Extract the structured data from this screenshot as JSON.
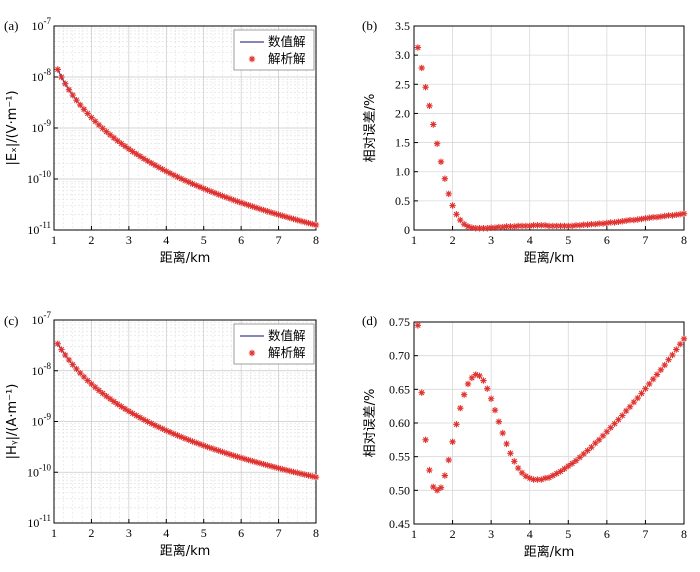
{
  "chart_data": [
    {
      "panel": "(a)",
      "type": "line",
      "log_y": true,
      "ylim": [
        1e-11,
        1e-07
      ],
      "xlim": [
        1,
        8
      ],
      "xticks": [
        1,
        2,
        3,
        4,
        5,
        6,
        7,
        8
      ],
      "ytick_labels": [
        {
          "base": "10",
          "exp": "-11"
        },
        {
          "base": "10",
          "exp": "-10"
        },
        {
          "base": "10",
          "exp": "-9"
        },
        {
          "base": "10",
          "exp": "-8"
        },
        {
          "base": "10",
          "exp": "-7"
        }
      ],
      "xlabel": "距离/km",
      "ylabel": "|Eₓ|/(V·m⁻¹)",
      "grid": true,
      "legend": "top-right",
      "legend_entries": [
        "数值解",
        "解析解"
      ],
      "curve": {
        "x0": 1.1,
        "y0": 1.3e-08,
        "alpha": 3.5,
        "A": 1.1e-09,
        "tau": 0.1
      },
      "colors": {
        "line": "#3a3f8f",
        "marker": "#e0322f"
      }
    },
    {
      "panel": "(b)",
      "type": "scatter",
      "log_y": false,
      "ylim": [
        0,
        3.5
      ],
      "xlim": [
        1,
        8
      ],
      "xticks": [
        1,
        2,
        3,
        4,
        5,
        6,
        7,
        8
      ],
      "yticks": [
        "0",
        "0.5",
        "1.0",
        "1.5",
        "2.0",
        "2.5",
        "3.0",
        "3.5"
      ],
      "xlabel": "距离/km",
      "ylabel": "相对误差/%",
      "grid": true,
      "points": [
        [
          1.1,
          3.13
        ],
        [
          1.2,
          2.78
        ],
        [
          1.3,
          2.45
        ],
        [
          1.4,
          2.13
        ],
        [
          1.5,
          1.81
        ],
        [
          1.6,
          1.48
        ],
        [
          1.7,
          1.17
        ],
        [
          1.8,
          0.88
        ],
        [
          1.9,
          0.62
        ],
        [
          2.0,
          0.42
        ],
        [
          2.1,
          0.27
        ],
        [
          2.2,
          0.17
        ],
        [
          2.3,
          0.1
        ],
        [
          2.4,
          0.06
        ],
        [
          2.5,
          0.04
        ],
        [
          2.6,
          0.03
        ],
        [
          2.7,
          0.03
        ],
        [
          2.8,
          0.03
        ],
        [
          2.9,
          0.03
        ],
        [
          3.0,
          0.04
        ],
        [
          3.1,
          0.04
        ],
        [
          3.2,
          0.05
        ],
        [
          3.3,
          0.05
        ],
        [
          3.4,
          0.06
        ],
        [
          3.5,
          0.06
        ],
        [
          3.6,
          0.06
        ],
        [
          3.7,
          0.07
        ],
        [
          3.8,
          0.07
        ],
        [
          3.9,
          0.07
        ],
        [
          4.0,
          0.07
        ],
        [
          4.1,
          0.08
        ],
        [
          4.2,
          0.08
        ],
        [
          4.3,
          0.08
        ],
        [
          4.4,
          0.08
        ],
        [
          4.5,
          0.07
        ],
        [
          4.6,
          0.07
        ],
        [
          4.7,
          0.07
        ],
        [
          4.8,
          0.07
        ],
        [
          4.9,
          0.07
        ],
        [
          5.0,
          0.07
        ],
        [
          5.1,
          0.07
        ],
        [
          5.2,
          0.08
        ],
        [
          5.3,
          0.08
        ],
        [
          5.4,
          0.09
        ],
        [
          5.5,
          0.09
        ],
        [
          5.6,
          0.1
        ],
        [
          5.7,
          0.1
        ],
        [
          5.8,
          0.11
        ],
        [
          5.9,
          0.11
        ],
        [
          6.0,
          0.12
        ],
        [
          6.1,
          0.13
        ],
        [
          6.2,
          0.13
        ],
        [
          6.3,
          0.14
        ],
        [
          6.4,
          0.15
        ],
        [
          6.5,
          0.16
        ],
        [
          6.6,
          0.17
        ],
        [
          6.7,
          0.17
        ],
        [
          6.8,
          0.18
        ],
        [
          6.9,
          0.19
        ],
        [
          7.0,
          0.2
        ],
        [
          7.1,
          0.21
        ],
        [
          7.2,
          0.22
        ],
        [
          7.3,
          0.22
        ],
        [
          7.4,
          0.23
        ],
        [
          7.5,
          0.24
        ],
        [
          7.6,
          0.25
        ],
        [
          7.7,
          0.25
        ],
        [
          7.8,
          0.26
        ],
        [
          7.9,
          0.27
        ],
        [
          8.0,
          0.28
        ]
      ],
      "colors": {
        "marker": "#e0322f"
      }
    },
    {
      "panel": "(c)",
      "type": "line",
      "log_y": true,
      "ylim": [
        1e-11,
        1e-07
      ],
      "xlim": [
        1,
        8
      ],
      "xticks": [
        1,
        2,
        3,
        4,
        5,
        6,
        7,
        8
      ],
      "ytick_labels": [
        {
          "base": "10",
          "exp": "-11"
        },
        {
          "base": "10",
          "exp": "-10"
        },
        {
          "base": "10",
          "exp": "-9"
        },
        {
          "base": "10",
          "exp": "-8"
        },
        {
          "base": "10",
          "exp": "-7"
        }
      ],
      "xlabel": "距离/km",
      "ylabel": "|Hᵧ|/(A·m⁻¹)",
      "grid": true,
      "legend": "top-right",
      "legend_entries": [
        "数值解",
        "解析解"
      ],
      "curve": {
        "x0": 1.1,
        "y0": 3.4e-08,
        "alpha": 3.05,
        "A": 0,
        "tau": 1
      },
      "colors": {
        "line": "#3a3f8f",
        "marker": "#e0322f"
      }
    },
    {
      "panel": "(d)",
      "type": "scatter",
      "log_y": false,
      "ylim": [
        0.45,
        0.75
      ],
      "xlim": [
        1,
        8
      ],
      "xticks": [
        1,
        2,
        3,
        4,
        5,
        6,
        7,
        8
      ],
      "yticks": [
        "0.45",
        "0.50",
        "0.55",
        "0.60",
        "0.65",
        "0.70",
        "0.75"
      ],
      "xlabel": "距离/km",
      "ylabel": "相对误差/%",
      "grid": true,
      "points": [
        [
          1.1,
          0.745
        ],
        [
          1.2,
          0.645
        ],
        [
          1.3,
          0.575
        ],
        [
          1.4,
          0.53
        ],
        [
          1.5,
          0.505
        ],
        [
          1.6,
          0.5
        ],
        [
          1.7,
          0.504
        ],
        [
          1.8,
          0.522
        ],
        [
          1.9,
          0.545
        ],
        [
          2.0,
          0.572
        ],
        [
          2.1,
          0.598
        ],
        [
          2.2,
          0.622
        ],
        [
          2.3,
          0.642
        ],
        [
          2.4,
          0.658
        ],
        [
          2.5,
          0.667
        ],
        [
          2.6,
          0.672
        ],
        [
          2.7,
          0.67
        ],
        [
          2.8,
          0.663
        ],
        [
          2.9,
          0.651
        ],
        [
          3.0,
          0.636
        ],
        [
          3.1,
          0.619
        ],
        [
          3.2,
          0.602
        ],
        [
          3.3,
          0.585
        ],
        [
          3.4,
          0.569
        ],
        [
          3.5,
          0.555
        ],
        [
          3.6,
          0.543
        ],
        [
          3.7,
          0.533
        ],
        [
          3.8,
          0.526
        ],
        [
          3.9,
          0.521
        ],
        [
          4.0,
          0.518
        ],
        [
          4.1,
          0.516
        ],
        [
          4.2,
          0.516
        ],
        [
          4.3,
          0.516
        ],
        [
          4.4,
          0.518
        ],
        [
          4.5,
          0.519
        ],
        [
          4.6,
          0.522
        ],
        [
          4.7,
          0.525
        ],
        [
          4.8,
          0.528
        ],
        [
          4.9,
          0.532
        ],
        [
          5.0,
          0.536
        ],
        [
          5.1,
          0.54
        ],
        [
          5.2,
          0.544
        ],
        [
          5.3,
          0.549
        ],
        [
          5.4,
          0.554
        ],
        [
          5.5,
          0.559
        ],
        [
          5.6,
          0.564
        ],
        [
          5.7,
          0.57
        ],
        [
          5.8,
          0.575
        ],
        [
          5.9,
          0.581
        ],
        [
          6.0,
          0.587
        ],
        [
          6.1,
          0.593
        ],
        [
          6.2,
          0.599
        ],
        [
          6.3,
          0.605
        ],
        [
          6.4,
          0.611
        ],
        [
          6.5,
          0.618
        ],
        [
          6.6,
          0.624
        ],
        [
          6.7,
          0.631
        ],
        [
          6.8,
          0.637
        ],
        [
          6.9,
          0.644
        ],
        [
          7.0,
          0.651
        ],
        [
          7.1,
          0.658
        ],
        [
          7.2,
          0.665
        ],
        [
          7.3,
          0.672
        ],
        [
          7.4,
          0.679
        ],
        [
          7.5,
          0.686
        ],
        [
          7.6,
          0.694
        ],
        [
          7.7,
          0.701
        ],
        [
          7.8,
          0.709
        ],
        [
          7.9,
          0.717
        ],
        [
          8.0,
          0.725
        ]
      ],
      "colors": {
        "marker": "#e0322f"
      }
    }
  ]
}
